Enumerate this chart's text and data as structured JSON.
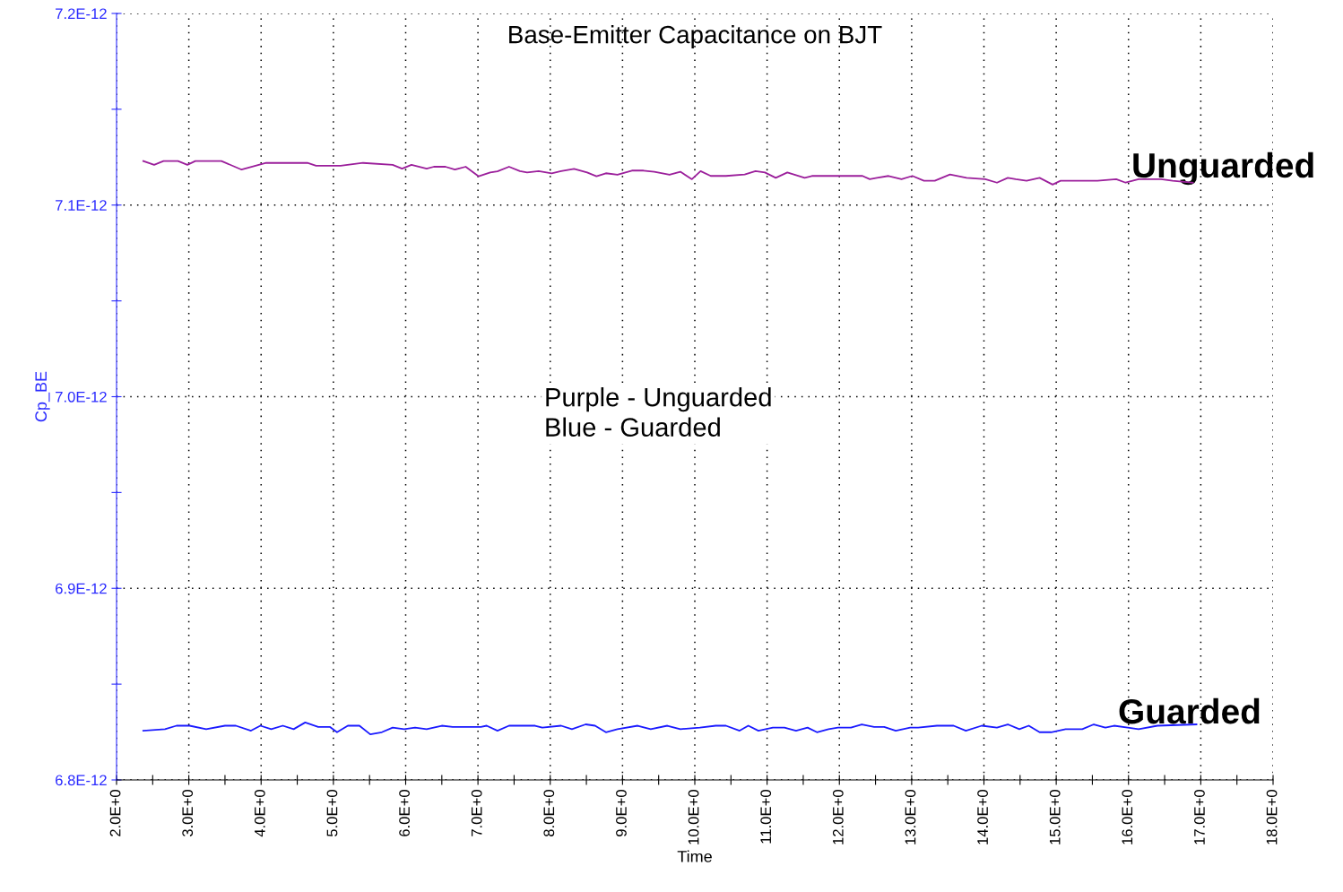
{
  "chart_data": {
    "type": "line",
    "title": "Base-Emitter Capacitance on BJT",
    "xlabel": "Time",
    "ylabel": "Cp_BE",
    "xlim": [
      2,
      18
    ],
    "xticks": [
      {
        "value": 2,
        "label": "2.0E+0"
      },
      {
        "value": 2.5,
        "label": null
      },
      {
        "value": 3,
        "label": "3.0E+0"
      },
      {
        "value": 3.5,
        "label": null
      },
      {
        "value": 4,
        "label": "4.0E+0"
      },
      {
        "value": 4.5,
        "label": null
      },
      {
        "value": 5,
        "label": "5.0E+0"
      },
      {
        "value": 5.5,
        "label": null
      },
      {
        "value": 6,
        "label": "6.0E+0"
      },
      {
        "value": 6.5,
        "label": null
      },
      {
        "value": 7,
        "label": "7.0E+0"
      },
      {
        "value": 7.5,
        "label": null
      },
      {
        "value": 8,
        "label": "8.0E+0"
      },
      {
        "value": 8.5,
        "label": null
      },
      {
        "value": 9,
        "label": "9.0E+0"
      },
      {
        "value": 9.5,
        "label": null
      },
      {
        "value": 10,
        "label": "10.0E+0"
      },
      {
        "value": 10.5,
        "label": null
      },
      {
        "value": 11,
        "label": "11.0E+0"
      },
      {
        "value": 11.5,
        "label": null
      },
      {
        "value": 12,
        "label": "12.0E+0"
      },
      {
        "value": 12.5,
        "label": null
      },
      {
        "value": 13,
        "label": "13.0E+0"
      },
      {
        "value": 13.5,
        "label": null
      },
      {
        "value": 14,
        "label": "14.0E+0"
      },
      {
        "value": 14.5,
        "label": null
      },
      {
        "value": 15,
        "label": "15.0E+0"
      },
      {
        "value": 15.5,
        "label": null
      },
      {
        "value": 16,
        "label": "16.0E+0"
      },
      {
        "value": 16.5,
        "label": null
      },
      {
        "value": 17,
        "label": "17.0E+0"
      },
      {
        "value": 17.5,
        "label": null
      },
      {
        "value": 18,
        "label": "18.0E+0"
      }
    ],
    "ylim": [
      6.8e-12,
      7.2e-12
    ],
    "yticks": [
      {
        "value": 6.8e-12,
        "label": "6.8E-12"
      },
      {
        "value": 6.85e-12,
        "label": null
      },
      {
        "value": 6.9e-12,
        "label": "6.9E-12"
      },
      {
        "value": 6.95e-12,
        "label": null
      },
      {
        "value": 7e-12,
        "label": "7.0E-12"
      },
      {
        "value": 7.05e-12,
        "label": null
      },
      {
        "value": 7.1e-12,
        "label": "7.1E-12"
      },
      {
        "value": 7.15e-12,
        "label": null
      },
      {
        "value": 7.2e-12,
        "label": "7.2E-12"
      }
    ],
    "grid": true,
    "line_style": "solid",
    "marker": "none",
    "series": [
      {
        "color": "#9b1f9b",
        "x": [
          2.37,
          2.52,
          2.65,
          2.85,
          2.98,
          3.09,
          3.45,
          3.73,
          4.07,
          4.64,
          4.76,
          5.1,
          5.41,
          5.82,
          5.95,
          6.08,
          6.29,
          6.39,
          6.55,
          6.68,
          6.83,
          7.01,
          7.17,
          7.27,
          7.43,
          7.58,
          7.68,
          7.84,
          8.02,
          8.15,
          8.33,
          8.51,
          8.64,
          8.77,
          8.93,
          9.13,
          9.29,
          9.44,
          9.65,
          9.8,
          9.96,
          10.08,
          10.22,
          10.43,
          10.69,
          10.84,
          10.97,
          11.12,
          11.28,
          11.52,
          11.62,
          12.32,
          12.42,
          12.52,
          12.68,
          12.86,
          13.01,
          13.17,
          13.32,
          13.53,
          13.76,
          14.02,
          14.18,
          14.33,
          14.44,
          14.59,
          14.77,
          14.95,
          15.06,
          15.57,
          15.83,
          15.96,
          16.14,
          16.45,
          16.61,
          16.89
        ],
        "values": [
          7.123e-12,
          7.121e-12,
          7.123e-12,
          7.123e-12,
          7.121e-12,
          7.123e-12,
          7.123e-12,
          7.1185e-12,
          7.122e-12,
          7.122e-12,
          7.1205e-12,
          7.1205e-12,
          7.122e-12,
          7.121e-12,
          7.119e-12,
          7.121e-12,
          7.119e-12,
          7.12e-12,
          7.12e-12,
          7.1185e-12,
          7.12e-12,
          7.115e-12,
          7.117e-12,
          7.1176e-12,
          7.12e-12,
          7.1177e-12,
          7.117e-12,
          7.1177e-12,
          7.1166e-12,
          7.1177e-12,
          7.1189e-12,
          7.117e-12,
          7.115e-12,
          7.1166e-12,
          7.1158e-12,
          7.118e-12,
          7.118e-12,
          7.1174e-12,
          7.1158e-12,
          7.1174e-12,
          7.1135e-12,
          7.1177e-12,
          7.1152e-12,
          7.1152e-12,
          7.116e-12,
          7.1177e-12,
          7.117e-12,
          7.1142e-12,
          7.117e-12,
          7.1142e-12,
          7.1152e-12,
          7.1152e-12,
          7.1135e-12,
          7.1142e-12,
          7.1152e-12,
          7.1135e-12,
          7.1152e-12,
          7.1127e-12,
          7.1127e-12,
          7.116e-12,
          7.1142e-12,
          7.1135e-12,
          7.1117e-12,
          7.1142e-12,
          7.1135e-12,
          7.1127e-12,
          7.1142e-12,
          7.1107e-12,
          7.1127e-12,
          7.1127e-12,
          7.1135e-12,
          7.1117e-12,
          7.1135e-12,
          7.1135e-12,
          7.1127e-12,
          7.1117e-12
        ]
      },
      {
        "color": "#1a1aff",
        "x": [
          2.37,
          2.67,
          2.83,
          3.01,
          3.24,
          3.5,
          3.65,
          3.86,
          3.99,
          4.14,
          4.3,
          4.45,
          4.61,
          4.79,
          4.95,
          5.05,
          5.2,
          5.36,
          5.51,
          5.67,
          5.82,
          5.98,
          6.13,
          6.29,
          6.5,
          6.65,
          7.04,
          7.12,
          7.27,
          7.43,
          7.79,
          7.89,
          8.15,
          8.3,
          8.49,
          8.62,
          8.77,
          8.93,
          9.21,
          9.39,
          9.62,
          9.8,
          10.07,
          10.29,
          10.43,
          10.62,
          10.74,
          10.88,
          11.08,
          11.24,
          11.4,
          11.56,
          11.69,
          11.85,
          11.98,
          12.16,
          12.31,
          12.48,
          12.62,
          12.78,
          12.98,
          13.09,
          13.35,
          13.58,
          13.75,
          13.97,
          14.18,
          14.33,
          14.49,
          14.62,
          14.77,
          14.93,
          15.13,
          15.36,
          15.52,
          15.68,
          15.8,
          15.99,
          16.14,
          16.4,
          16.94
        ],
        "values": [
          6.8257e-12,
          6.8265e-12,
          6.8283e-12,
          6.8283e-12,
          6.8265e-12,
          6.8283e-12,
          6.8283e-12,
          6.8257e-12,
          6.8283e-12,
          6.8265e-12,
          6.8283e-12,
          6.8265e-12,
          6.83e-12,
          6.8277e-12,
          6.8277e-12,
          6.8249e-12,
          6.8283e-12,
          6.8283e-12,
          6.8238e-12,
          6.8249e-12,
          6.8273e-12,
          6.8265e-12,
          6.8273e-12,
          6.8265e-12,
          6.8283e-12,
          6.8277e-12,
          6.8277e-12,
          6.8283e-12,
          6.8257e-12,
          6.8283e-12,
          6.8283e-12,
          6.8273e-12,
          6.8283e-12,
          6.8265e-12,
          6.829e-12,
          6.8283e-12,
          6.8249e-12,
          6.8265e-12,
          6.8283e-12,
          6.8265e-12,
          6.8283e-12,
          6.8265e-12,
          6.8273e-12,
          6.8283e-12,
          6.8283e-12,
          6.8257e-12,
          6.8283e-12,
          6.8257e-12,
          6.8273e-12,
          6.8273e-12,
          6.8257e-12,
          6.8273e-12,
          6.8249e-12,
          6.8265e-12,
          6.8273e-12,
          6.8273e-12,
          6.829e-12,
          6.8277e-12,
          6.8277e-12,
          6.8257e-12,
          6.8273e-12,
          6.8273e-12,
          6.8283e-12,
          6.8283e-12,
          6.8257e-12,
          6.8283e-12,
          6.8273e-12,
          6.829e-12,
          6.8265e-12,
          6.8283e-12,
          6.8249e-12,
          6.8249e-12,
          6.8265e-12,
          6.8265e-12,
          6.829e-12,
          6.8273e-12,
          6.8283e-12,
          6.8273e-12,
          6.8265e-12,
          6.8283e-12,
          6.829e-12
        ]
      }
    ],
    "annotations": [
      "Unguarded",
      "Guarded",
      "Purple - Unguarded\nBlue - Guarded"
    ]
  }
}
